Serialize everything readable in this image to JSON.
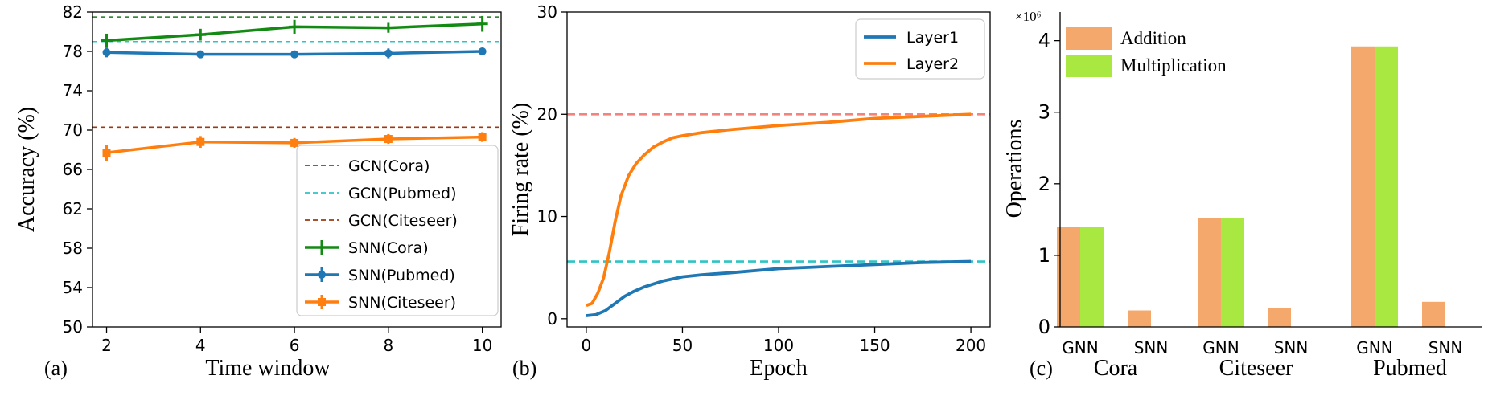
{
  "chart_data": [
    {
      "type": "line",
      "panel_label": "(a)",
      "xlabel": "Time window",
      "ylabel": "Accuracy (%)",
      "xlim": [
        1.7,
        10.4
      ],
      "ylim": [
        50,
        82
      ],
      "xticks": [
        2,
        4,
        6,
        8,
        10
      ],
      "yticks": [
        50,
        54,
        58,
        62,
        66,
        70,
        74,
        78,
        82
      ],
      "x": [
        2,
        4,
        6,
        8,
        10
      ],
      "reference_lines": [
        {
          "name": "GCN(Cora)",
          "value": 81.5,
          "color": "#1b7a1b",
          "style": "dashed"
        },
        {
          "name": "GCN(Pubmed)",
          "value": 79.0,
          "color": "#2ec4c4",
          "style": "dashed"
        },
        {
          "name": "GCN(Citeseer)",
          "value": 70.3,
          "color": "#9a3a10",
          "style": "dashed"
        }
      ],
      "series": [
        {
          "name": "SNN(Cora)",
          "color": "#138a13",
          "values": [
            79.1,
            79.7,
            80.5,
            80.4,
            80.8
          ],
          "errors": [
            0.7,
            0.6,
            0.7,
            0.5,
            0.8
          ]
        },
        {
          "name": "SNN(Pubmed)",
          "color": "#1f77b4",
          "values": [
            77.9,
            77.7,
            77.7,
            77.8,
            78.0
          ],
          "errors": [
            0.5,
            0.3,
            0.3,
            0.5,
            0.3
          ]
        },
        {
          "name": "SNN(Citeseer)",
          "color": "#ff7f0e",
          "values": [
            67.7,
            68.8,
            68.7,
            69.1,
            69.3
          ],
          "errors": [
            0.8,
            0.6,
            0.5,
            0.5,
            0.5
          ]
        }
      ],
      "legend": "bottom-right",
      "grid": false
    },
    {
      "type": "line",
      "panel_label": "(b)",
      "xlabel": "Epoch",
      "ylabel": "Firing rate (%)",
      "xlim": [
        -10,
        210
      ],
      "ylim": [
        -0.8,
        30
      ],
      "xticks": [
        0,
        50,
        100,
        150,
        200
      ],
      "yticks": [
        0,
        10,
        20,
        30
      ],
      "reference_lines": [
        {
          "value": 20.0,
          "color": "#f4837d",
          "style": "dashed"
        },
        {
          "value": 5.6,
          "color": "#2ec4c4",
          "style": "dashed"
        }
      ],
      "series": [
        {
          "name": "Layer1",
          "color": "#1f77b4",
          "x": [
            0,
            5,
            10,
            15,
            20,
            25,
            30,
            40,
            50,
            60,
            75,
            100,
            125,
            150,
            175,
            200
          ],
          "values": [
            0.3,
            0.4,
            0.8,
            1.5,
            2.2,
            2.7,
            3.1,
            3.7,
            4.1,
            4.3,
            4.5,
            4.9,
            5.1,
            5.3,
            5.5,
            5.6
          ]
        },
        {
          "name": "Layer2",
          "color": "#ff7f0e",
          "x": [
            0,
            3,
            6,
            9,
            12,
            15,
            18,
            22,
            26,
            30,
            35,
            40,
            45,
            50,
            60,
            75,
            100,
            125,
            150,
            175,
            200
          ],
          "values": [
            1.3,
            1.5,
            2.5,
            4.0,
            6.5,
            9.5,
            12.0,
            14.0,
            15.2,
            16.0,
            16.8,
            17.3,
            17.7,
            17.9,
            18.2,
            18.5,
            18.9,
            19.2,
            19.6,
            19.8,
            20.0
          ]
        }
      ],
      "legend": "top-right",
      "grid": false
    },
    {
      "type": "bar",
      "panel_label": "(c)",
      "ylabel": "Operations",
      "y_scale_note": "×10⁶",
      "ylim": [
        0,
        4.4
      ],
      "yticks": [
        0,
        1,
        2,
        3,
        4
      ],
      "groups": [
        "Cora",
        "Citeseer",
        "Pubmed"
      ],
      "categories": [
        "GNN",
        "SNN",
        "GNN",
        "SNN",
        "GNN",
        "SNN"
      ],
      "series": [
        {
          "name": "Addition",
          "color": "#f5a86c",
          "values": [
            1.4,
            0.23,
            1.52,
            0.26,
            3.92,
            0.35
          ]
        },
        {
          "name": "Multiplication",
          "color": "#a8e840",
          "values": [
            1.4,
            0,
            1.52,
            0,
            3.92,
            0
          ]
        }
      ],
      "legend": "top-left",
      "grid": false
    }
  ]
}
